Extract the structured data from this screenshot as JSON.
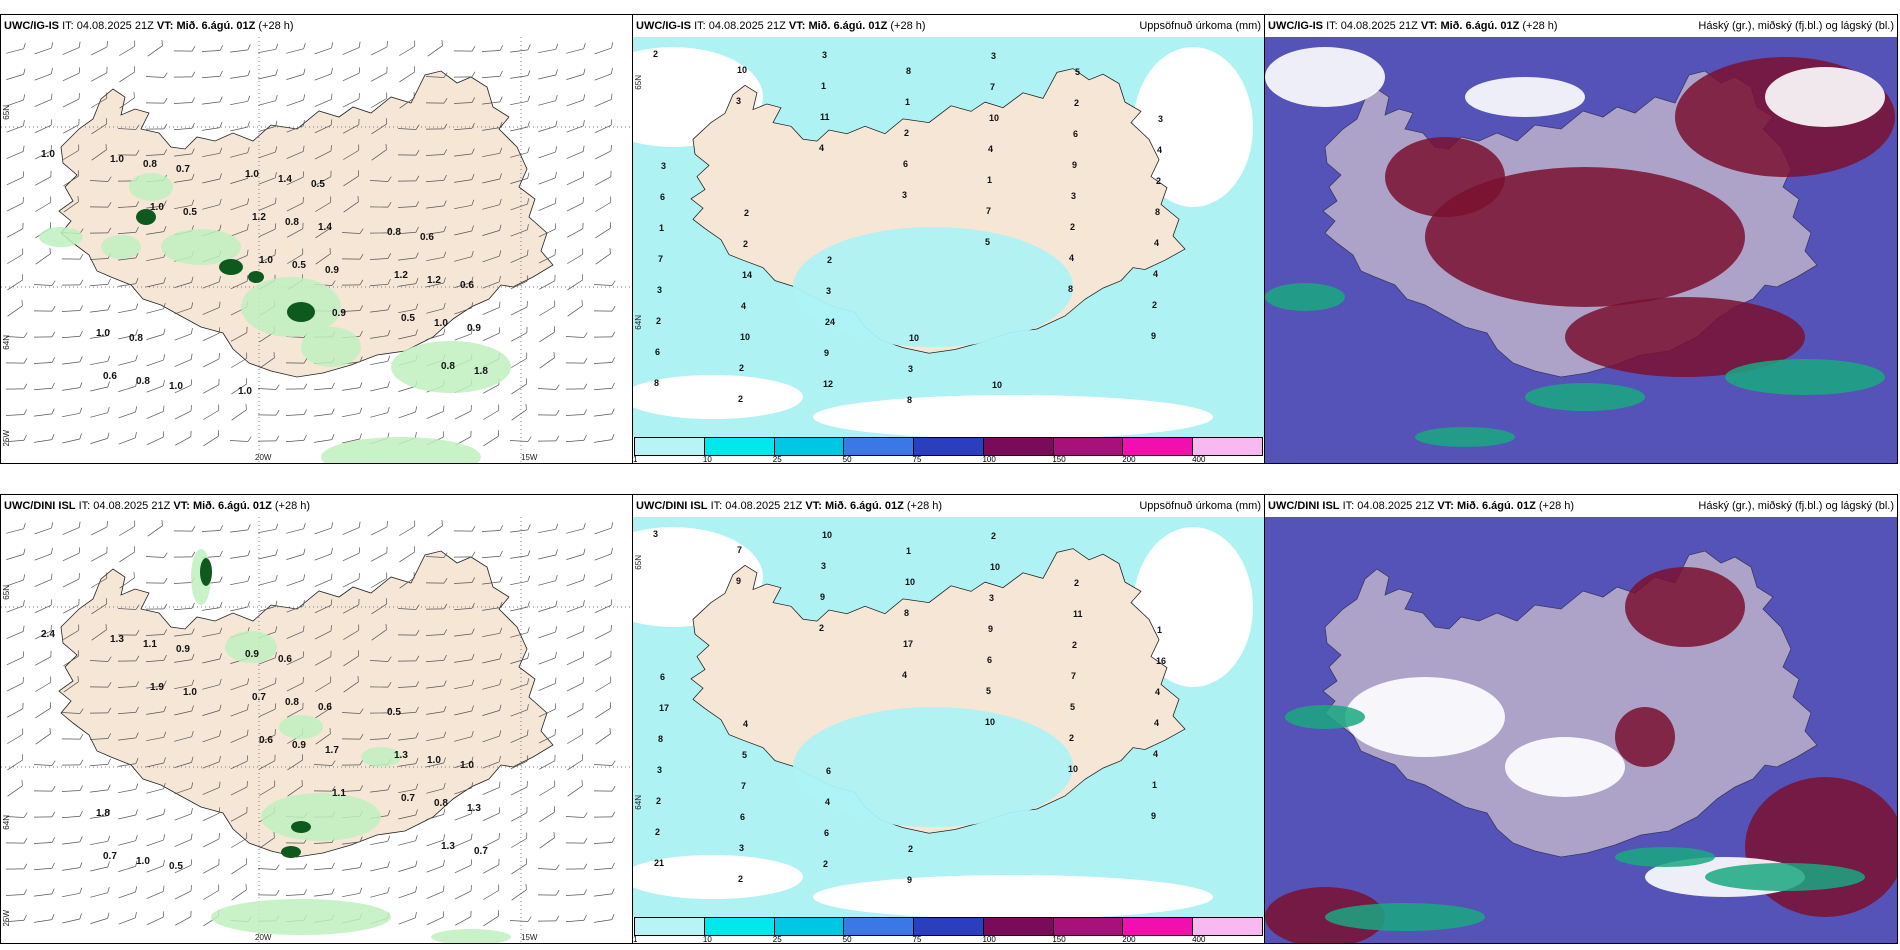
{
  "rows": [
    {
      "model": "UWC/IG-IS",
      "panels": [
        {
          "kind": "wind",
          "it_label": "IT:",
          "it": "04.08.2025 21Z",
          "vt_label": "VT:",
          "vt": "Mið. 6.ágú. 01Z",
          "lead": "(+28 h)",
          "right_title": "",
          "axis": {
            "lat_top": "65N",
            "lat_mid": "64N",
            "lon_left": "25W",
            "lon_mid": "20W",
            "lon_right": "15W"
          },
          "precip_values": [
            "1.0",
            "1.0",
            "1.0",
            "0.9",
            "0.8",
            "1.0",
            "0.5",
            "0.5",
            "0.5",
            "1.8",
            "0.8",
            "1.2",
            "0.9",
            "1.0",
            "0.6",
            "0.7",
            "0.8",
            "1.2",
            "0.9",
            "0.8",
            "1.0",
            "1.4",
            "1.2",
            "1.0",
            "1.0",
            "1.4",
            "0.8",
            "0.6",
            "0.8",
            "1.0",
            "0.5",
            "0.6"
          ]
        },
        {
          "kind": "precip",
          "it_label": "IT:",
          "it": "04.08.2025 21Z",
          "vt_label": "VT:",
          "vt": "Mið. 6.ágú. 01Z",
          "lead": "(+28 h)",
          "right_title": "Uppsöfnuð úrkoma (mm)",
          "axis": {
            "lat_top": "65N",
            "lat_mid": "64N"
          },
          "point_values": [
            "2",
            "3",
            "4",
            "3",
            "5",
            "8",
            "9",
            "8",
            "10",
            "11",
            "6",
            "7",
            "4",
            "2",
            "6",
            "2",
            "1",
            "2",
            "1",
            "2",
            "4",
            "2",
            "2",
            "3",
            "1",
            "4",
            "3",
            "4",
            "3",
            "10",
            "12",
            "8",
            "10",
            "9",
            "8",
            "7",
            "4",
            "9",
            "8",
            "7",
            "6",
            "2",
            "1",
            "14",
            "24",
            "3",
            "3",
            "2",
            "4",
            "6",
            "2",
            "3",
            "10",
            "10",
            "5",
            "3",
            "3",
            "2",
            "2"
          ],
          "colorbar": {
            "ticks": [
              "1",
              "10",
              "25",
              "50",
              "75",
              "100",
              "150",
              "200",
              "400"
            ],
            "colors": [
              "#b8f3f5",
              "#00e8ee",
              "#00c6e6",
              "#3a78e8",
              "#2a3ec0",
              "#7a0a5a",
              "#a8107a",
              "#f010b0",
              "#f8b8f0"
            ]
          }
        },
        {
          "kind": "clouds",
          "it_label": "IT:",
          "it": "04.08.2025 21Z",
          "vt_label": "VT:",
          "vt": "Mið. 6.ágú. 01Z",
          "lead": "(+28 h)",
          "right_title": "Háský (gr.), miðský (fj.bl.) og lágský (bl.)"
        }
      ]
    },
    {
      "model": "UWC/DINI ISL",
      "panels": [
        {
          "kind": "wind",
          "it_label": "IT:",
          "it": "04.08.2025 21Z",
          "vt_label": "VT:",
          "vt": "Mið. 6.ágú. 01Z",
          "lead": "(+28 h)",
          "right_title": "",
          "axis": {
            "lat_top": "65N",
            "lat_mid": "64N",
            "lon_left": "25W",
            "lon_mid": "20W",
            "lon_right": "15W"
          },
          "precip_values": [
            "2.4",
            "1.9",
            "0.6",
            "1.1",
            "1.3",
            "1.3",
            "1.0",
            "0.9",
            "0.7",
            "0.7",
            "1.1",
            "0.7",
            "1.7",
            "0.8",
            "0.7",
            "0.9",
            "0.8",
            "1.3",
            "1.3",
            "1.0",
            "0.9",
            "0.6",
            "1.0",
            "1.8",
            "0.5",
            "0.6",
            "0.5",
            "1.0"
          ]
        },
        {
          "kind": "precip",
          "it_label": "IT:",
          "it": "04.08.2025 21Z",
          "vt_label": "VT:",
          "vt": "Mið. 6.ágú. 01Z",
          "lead": "(+28 h)",
          "right_title": "Uppsöfnuð úrkoma (mm)",
          "axis": {
            "lat_top": "65N",
            "lat_mid": "64N"
          },
          "point_values": [
            "3",
            "9",
            "2",
            "4",
            "10",
            "10",
            "9",
            "21",
            "7",
            "9",
            "17",
            "5",
            "2",
            "1",
            "2",
            "2",
            "3",
            "8",
            "6",
            "5",
            "4",
            "2",
            "3",
            "10",
            "10",
            "9",
            "7",
            "4",
            "3",
            "6",
            "2",
            "1",
            "3",
            "2",
            "4",
            "8",
            "7",
            "6",
            "9",
            "10",
            "11",
            "16",
            "17",
            "5",
            "4",
            "2",
            "2",
            "2",
            "1",
            "6",
            "4",
            "6"
          ],
          "colorbar": {
            "ticks": [
              "1",
              "10",
              "25",
              "50",
              "75",
              "100",
              "150",
              "200",
              "400"
            ],
            "colors": [
              "#b8f3f5",
              "#00e8ee",
              "#00c6e6",
              "#3a78e8",
              "#2a3ec0",
              "#7a0a5a",
              "#a8107a",
              "#f010b0",
              "#f8b8f0"
            ]
          }
        },
        {
          "kind": "clouds",
          "it_label": "IT:",
          "it": "04.08.2025 21Z",
          "vt_label": "VT:",
          "vt": "Mið. 6.ágú. 01Z",
          "lead": "(+28 h)",
          "right_title": "Háský (gr.), miðský (fj.bl.) og lágský (bl.)"
        }
      ]
    }
  ],
  "colors": {
    "land": "#f5e6d6",
    "precip_light": "#aef2f4",
    "wind_green_light": "#bff0bf",
    "wind_green_dark": "#0e5a1e",
    "cloud_blue": "#5553b8",
    "cloud_maroon": "#7a1030",
    "cloud_teal": "#1aa880"
  }
}
